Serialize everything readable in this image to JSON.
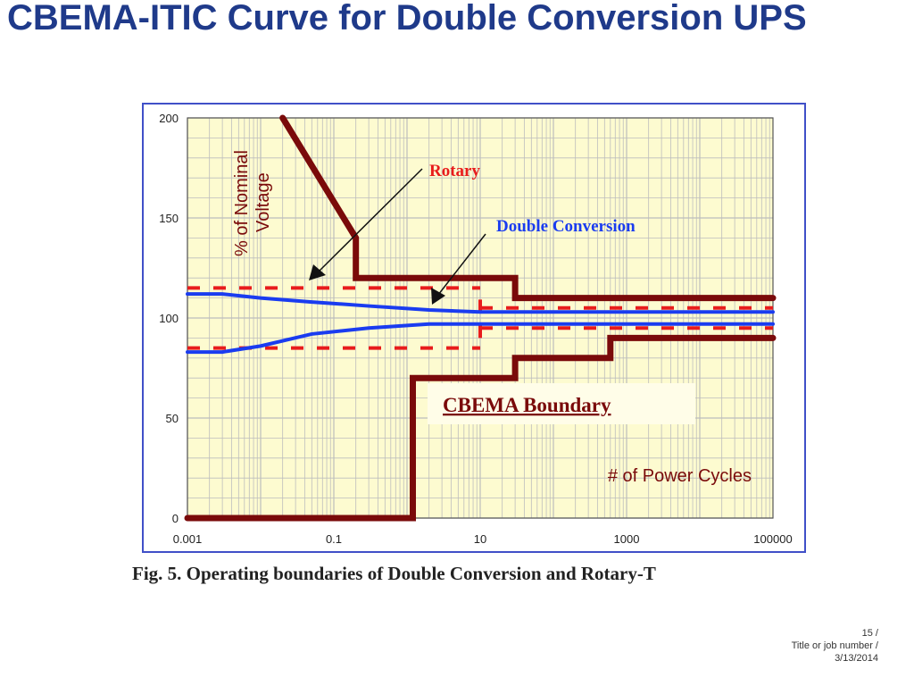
{
  "slide": {
    "title": "CBEMA-ITIC Curve for Double Conversion UPS",
    "caption": "Fig. 5. Operating boundaries of Double Conversion and Rotary-T",
    "footer": {
      "page": "15 /",
      "job": "Title or job number /",
      "date": "3/13/2014"
    }
  },
  "chart_data": {
    "type": "line",
    "x_scale": "log",
    "xlim": [
      0.001,
      100000
    ],
    "ylim": [
      0,
      200
    ],
    "x_ticks": [
      0.001,
      0.1,
      10,
      1000,
      100000
    ],
    "x_tick_labels": [
      "0.001",
      "0.1",
      "10",
      "1000",
      "100000"
    ],
    "y_ticks": [
      0,
      50,
      100,
      150,
      200
    ],
    "y_tick_labels": [
      "0",
      "50",
      "100",
      "150",
      "200"
    ],
    "ylabel": "% of Nominal Voltage",
    "xlabel": "# of Power Cycles",
    "grid": true,
    "colors": {
      "plot_background": "#fdfbd0",
      "grid": "#bdbdbd",
      "cbema": "#7a0a0a",
      "double_conversion": "#1a3cf0",
      "rotary": "#e81c1c",
      "arrow": "#111111"
    },
    "series": [
      {
        "name": "CBEMA Boundary",
        "style": "solid-thick",
        "color": "#7a0a0a",
        "segments": [
          {
            "x": [
              0.02,
              0.2,
              0.2,
              30,
              30,
              100000
            ],
            "y": [
              200,
              140,
              120,
              120,
              110,
              110
            ]
          },
          {
            "x": [
              0.001,
              1.2,
              1.2,
              30,
              30,
              600,
              600,
              100000
            ],
            "y": [
              0,
              0,
              70,
              70,
              80,
              80,
              90,
              90
            ]
          }
        ]
      },
      {
        "name": "Double Conversion",
        "style": "solid",
        "color": "#1a3cf0",
        "segments": [
          {
            "x": [
              0.001,
              0.003,
              0.01,
              0.05,
              0.3,
              2,
              10,
              100000
            ],
            "y": [
              112,
              112,
              110,
              108,
              106,
              104,
              103,
              103
            ]
          },
          {
            "x": [
              0.001,
              0.003,
              0.01,
              0.05,
              0.3,
              2,
              10,
              100000
            ],
            "y": [
              83,
              83,
              86,
              92,
              95,
              97,
              97,
              97
            ]
          }
        ]
      },
      {
        "name": "Rotary",
        "style": "dashed",
        "color": "#e81c1c",
        "segments": [
          {
            "x": [
              0.001,
              10
            ],
            "y": [
              115,
              115
            ]
          },
          {
            "x": [
              0.001,
              10
            ],
            "y": [
              85,
              85
            ]
          },
          {
            "x": [
              10,
              100000
            ],
            "y": [
              105,
              105
            ]
          },
          {
            "x": [
              10,
              100000
            ],
            "y": [
              95,
              95
            ]
          },
          {
            "x": [
              10,
              10
            ],
            "y": [
              90,
              110
            ]
          }
        ]
      }
    ],
    "annotations": [
      {
        "text": "Rotary",
        "color": "#e81c1c",
        "arrow_to": [
          0.05,
          120
        ]
      },
      {
        "text": "Double Conversion",
        "color": "#1a3cf0",
        "arrow_to": [
          1.5,
          107
        ]
      },
      {
        "text": "CBEMA Boundary",
        "color": "#7a0a0a",
        "underline": true
      }
    ]
  }
}
